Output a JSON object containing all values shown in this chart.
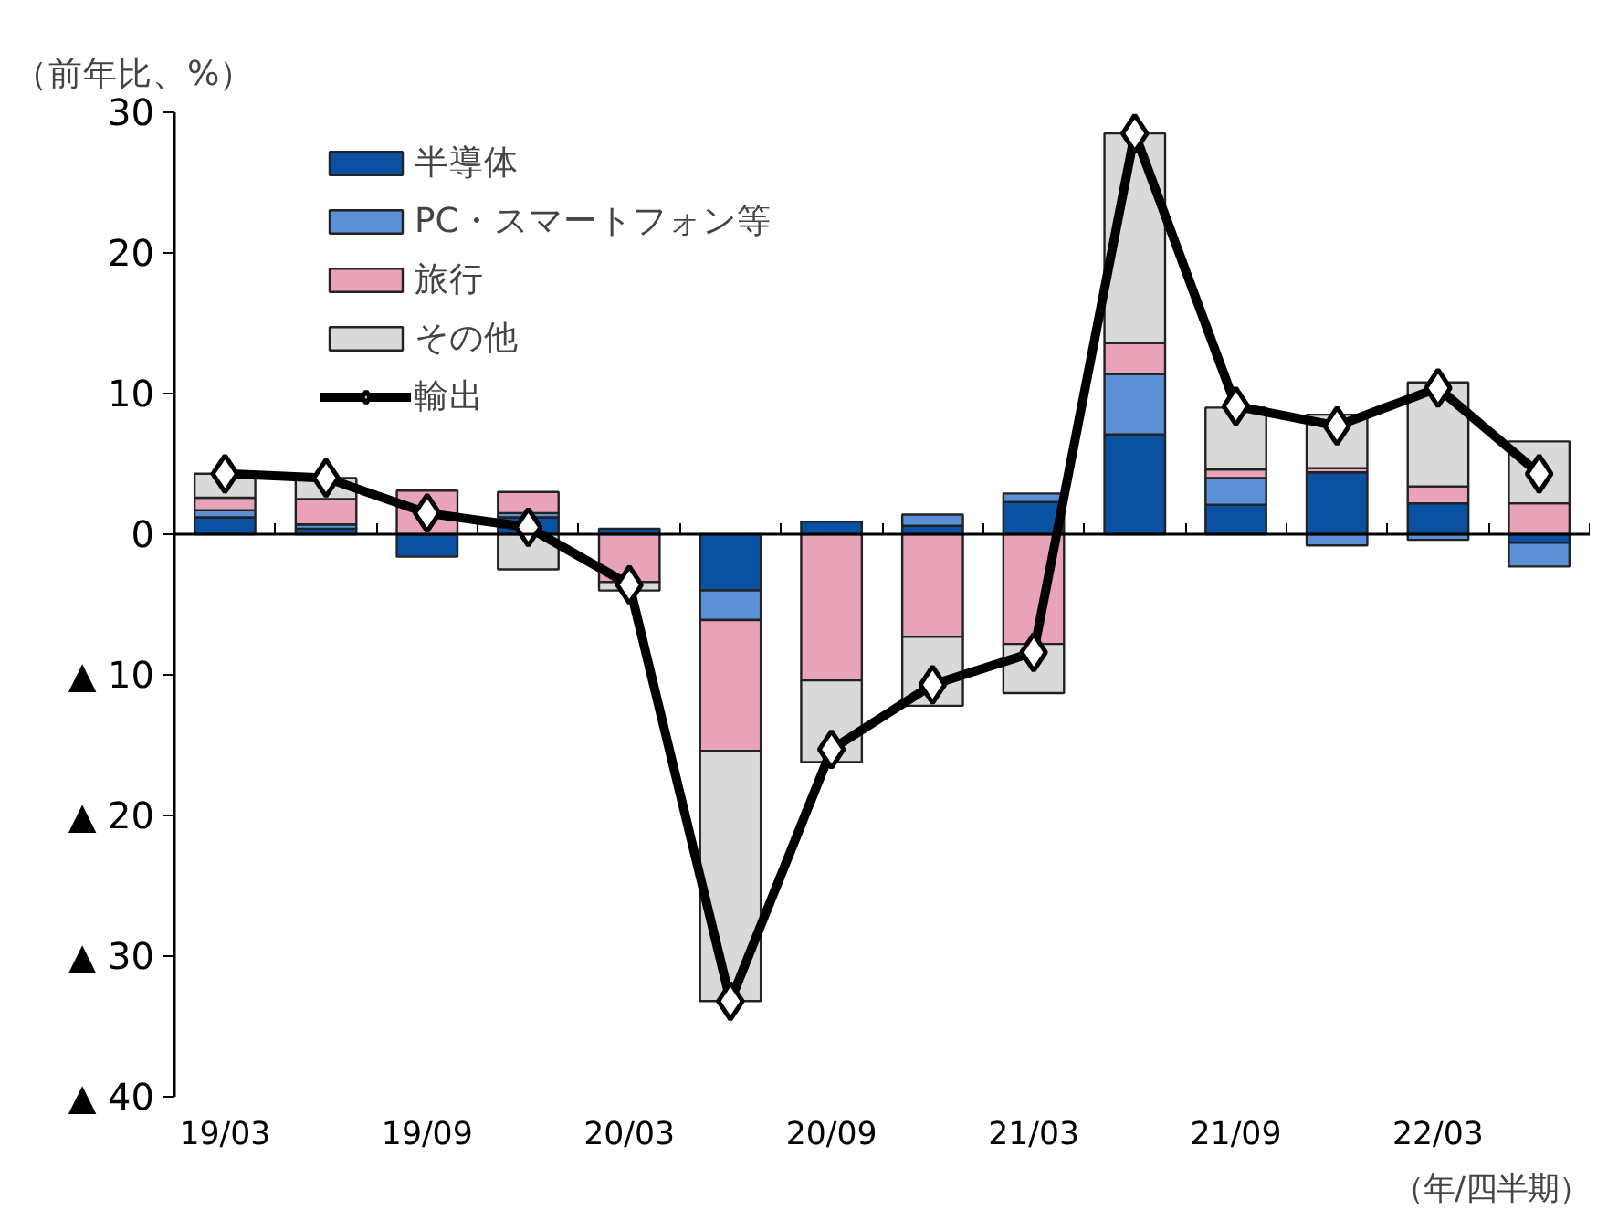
{
  "chart_data": {
    "type": "bar",
    "stacked": true,
    "ylabel": "（前年比、%）",
    "annotations": [
      "（年/四半期）"
    ],
    "categories": [
      "19/03",
      null,
      "19/09",
      null,
      "20/03",
      null,
      "20/09",
      null,
      "21/03",
      null,
      "21/09",
      null,
      "22/03",
      null
    ],
    "series": [
      {
        "name": "半導体",
        "color": "#0b51a1",
        "values": [
          1.2,
          0.4,
          -1.6,
          1.2,
          0.4,
          -4.0,
          0.9,
          0.6,
          2.3,
          7.1,
          2.1,
          4.4,
          2.2,
          -0.6
        ]
      },
      {
        "name": "PC・スマートフォン等",
        "color": "#5b8fd6",
        "values": [
          0.5,
          0.3,
          null,
          0.3,
          null,
          -2.1,
          null,
          0.8,
          0.6,
          4.3,
          1.9,
          -0.8,
          -0.4,
          -1.7
        ]
      },
      {
        "name": "旅行",
        "color": "#e8a3b8",
        "values": [
          0.9,
          1.8,
          3.1,
          1.5,
          -3.4,
          -9.3,
          -10.4,
          -7.3,
          -7.8,
          2.2,
          0.6,
          0.3,
          1.2,
          2.2
        ]
      },
      {
        "name": "その他",
        "color": "#d9d9d9",
        "values": [
          1.7,
          1.5,
          null,
          -2.5,
          -0.6,
          -17.8,
          -5.8,
          -4.9,
          -3.5,
          14.9,
          4.4,
          3.8,
          7.4,
          4.4
        ]
      },
      {
        "name": "輸出",
        "type": "line",
        "color": "#000000",
        "marker": "diamond",
        "values": [
          4.3,
          4.0,
          1.5,
          0.5,
          -3.6,
          -33.2,
          -15.3,
          -10.7,
          -8.4,
          28.5,
          9.1,
          7.7,
          10.4,
          4.3
        ]
      }
    ],
    "ylim": [
      -40,
      30
    ],
    "yticks": [
      {
        "value": -40,
        "label": "▲ 40"
      },
      {
        "value": -30,
        "label": "▲ 30"
      },
      {
        "value": -20,
        "label": "▲ 20"
      },
      {
        "value": -10,
        "label": "▲ 10"
      },
      0,
      10,
      20,
      30
    ],
    "legend": "top left"
  }
}
